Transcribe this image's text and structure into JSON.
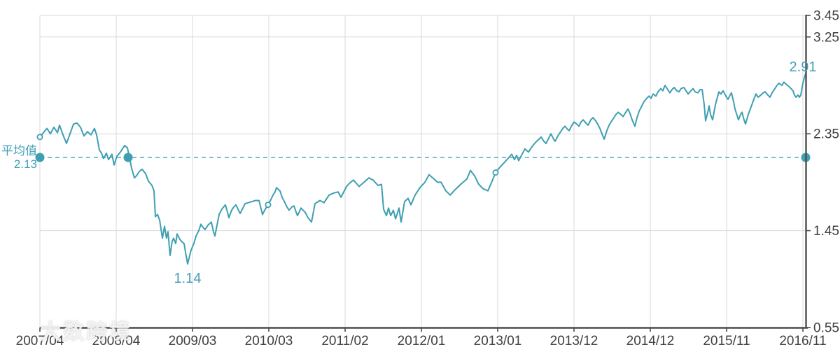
{
  "watermark": {
    "text": "大数跨境"
  },
  "chart_data": {
    "type": "line",
    "title": "",
    "legend": [],
    "grid": true,
    "x_axis": {
      "position": "bottom",
      "tick_labels": [
        "2007/04",
        "2008/04",
        "2009/03",
        "2010/03",
        "2011/02",
        "2012/01",
        "2013/01",
        "2013/12",
        "2014/12",
        "2015/11",
        "2016/11"
      ]
    },
    "y_axis": {
      "position": "right",
      "range": [
        0.55,
        3.45
      ],
      "tick_values": [
        3.45,
        3.25,
        2.35,
        1.45,
        0.55
      ],
      "tick_labels": [
        "3.45",
        "3.25",
        "2.35",
        "1.45",
        "0.55"
      ],
      "grid_values": [
        3.45,
        3.25,
        2.35,
        1.45
      ]
    },
    "average": {
      "label": "平均值",
      "value": 2.13,
      "value_label": "2.13",
      "dot_ts": [
        0,
        0.1152,
        1
      ]
    },
    "annotations": {
      "min_label": "1.14",
      "min_value": 1.14,
      "end_label": "2.91",
      "end_value": 2.91
    },
    "open_markers": [
      [
        0,
        2.32
      ],
      [
        0.298,
        1.69
      ],
      [
        0.5951,
        1.99
      ]
    ],
    "colors": {
      "line": "#3f9fb2",
      "annotation_text": "#429fb5",
      "average_line": "#52a8bc",
      "grid": "#d8d8d8",
      "axis": "#4d4d4d",
      "tick_text": "#404040"
    },
    "points": [
      [
        0,
        2.32
      ],
      [
        0.0046,
        2.36
      ],
      [
        0.0091,
        2.4
      ],
      [
        0.0137,
        2.35
      ],
      [
        0.0183,
        2.41
      ],
      [
        0.0229,
        2.36
      ],
      [
        0.0256,
        2.43
      ],
      [
        0.0302,
        2.34
      ],
      [
        0.0347,
        2.26
      ],
      [
        0.0393,
        2.35
      ],
      [
        0.0439,
        2.44
      ],
      [
        0.0484,
        2.45
      ],
      [
        0.053,
        2.41
      ],
      [
        0.0576,
        2.33
      ],
      [
        0.0622,
        2.37
      ],
      [
        0.0667,
        2.34
      ],
      [
        0.0713,
        2.4
      ],
      [
        0.074,
        2.34
      ],
      [
        0.0777,
        2.2
      ],
      [
        0.0804,
        2.17
      ],
      [
        0.0832,
        2.12
      ],
      [
        0.0868,
        2.17
      ],
      [
        0.0896,
        2.11
      ],
      [
        0.0941,
        2.16
      ],
      [
        0.0969,
        2.06
      ],
      [
        0.1005,
        2.14
      ],
      [
        0.1051,
        2.18
      ],
      [
        0.1079,
        2.21
      ],
      [
        0.1106,
        2.24
      ],
      [
        0.1143,
        2.22
      ],
      [
        0.117,
        2.13
      ],
      [
        0.1197,
        2.03
      ],
      [
        0.1234,
        1.94
      ],
      [
        0.1261,
        1.96
      ],
      [
        0.1298,
        2.0
      ],
      [
        0.1335,
        2.02
      ],
      [
        0.138,
        1.98
      ],
      [
        0.1417,
        1.91
      ],
      [
        0.1463,
        1.87
      ],
      [
        0.149,
        1.82
      ],
      [
        0.1508,
        1.58
      ],
      [
        0.1536,
        1.6
      ],
      [
        0.1563,
        1.55
      ],
      [
        0.16,
        1.38
      ],
      [
        0.1627,
        1.49
      ],
      [
        0.1654,
        1.38
      ],
      [
        0.1673,
        1.44
      ],
      [
        0.17,
        1.22
      ],
      [
        0.1727,
        1.35
      ],
      [
        0.1746,
        1.38
      ],
      [
        0.1773,
        1.33
      ],
      [
        0.1792,
        1.42
      ],
      [
        0.1819,
        1.38
      ],
      [
        0.1837,
        1.36
      ],
      [
        0.1865,
        1.34
      ],
      [
        0.1883,
        1.33
      ],
      [
        0.1901,
        1.25
      ],
      [
        0.1929,
        1.14
      ],
      [
        0.1956,
        1.22
      ],
      [
        0.1974,
        1.27
      ],
      [
        0.2011,
        1.33
      ],
      [
        0.2038,
        1.4
      ],
      [
        0.2075,
        1.45
      ],
      [
        0.2102,
        1.51
      ],
      [
        0.213,
        1.48
      ],
      [
        0.2157,
        1.46
      ],
      [
        0.2194,
        1.5
      ],
      [
        0.2239,
        1.53
      ],
      [
        0.2267,
        1.44
      ],
      [
        0.2285,
        1.4
      ],
      [
        0.2313,
        1.5
      ],
      [
        0.234,
        1.6
      ],
      [
        0.2377,
        1.65
      ],
      [
        0.2422,
        1.69
      ],
      [
        0.245,
        1.62
      ],
      [
        0.2468,
        1.57
      ],
      [
        0.2504,
        1.64
      ],
      [
        0.2532,
        1.67
      ],
      [
        0.2559,
        1.69
      ],
      [
        0.2587,
        1.65
      ],
      [
        0.2614,
        1.61
      ],
      [
        0.2651,
        1.66
      ],
      [
        0.2678,
        1.7
      ],
      [
        0.2724,
        1.71
      ],
      [
        0.277,
        1.72
      ],
      [
        0.2815,
        1.73
      ],
      [
        0.2861,
        1.73
      ],
      [
        0.2907,
        1.6
      ],
      [
        0.2943,
        1.65
      ],
      [
        0.298,
        1.69
      ],
      [
        0.3017,
        1.74
      ],
      [
        0.3044,
        1.78
      ],
      [
        0.3071,
        1.81
      ],
      [
        0.309,
        1.85
      ],
      [
        0.3117,
        1.83
      ],
      [
        0.3135,
        1.82
      ],
      [
        0.3163,
        1.76
      ],
      [
        0.3199,
        1.71
      ],
      [
        0.3227,
        1.67
      ],
      [
        0.3254,
        1.64
      ],
      [
        0.3291,
        1.67
      ],
      [
        0.3318,
        1.68
      ],
      [
        0.3346,
        1.62
      ],
      [
        0.3364,
        1.59
      ],
      [
        0.3391,
        1.63
      ],
      [
        0.3409,
        1.66
      ],
      [
        0.3464,
        1.62
      ],
      [
        0.3501,
        1.57
      ],
      [
        0.3547,
        1.53
      ],
      [
        0.3592,
        1.7
      ],
      [
        0.3656,
        1.73
      ],
      [
        0.3711,
        1.71
      ],
      [
        0.3775,
        1.78
      ],
      [
        0.3839,
        1.8
      ],
      [
        0.3894,
        1.81
      ],
      [
        0.3931,
        1.76
      ],
      [
        0.4004,
        1.86
      ],
      [
        0.4095,
        1.92
      ],
      [
        0.4168,
        1.86
      ],
      [
        0.4232,
        1.9
      ],
      [
        0.4296,
        1.94
      ],
      [
        0.4351,
        1.92
      ],
      [
        0.4415,
        1.87
      ],
      [
        0.4461,
        1.88
      ],
      [
        0.4488,
        1.65
      ],
      [
        0.4525,
        1.59
      ],
      [
        0.4552,
        1.66
      ],
      [
        0.458,
        1.59
      ],
      [
        0.4616,
        1.64
      ],
      [
        0.4644,
        1.56
      ],
      [
        0.4689,
        1.66
      ],
      [
        0.4717,
        1.53
      ],
      [
        0.4762,
        1.72
      ],
      [
        0.4808,
        1.75
      ],
      [
        0.4845,
        1.69
      ],
      [
        0.4899,
        1.78
      ],
      [
        0.4963,
        1.85
      ],
      [
        0.5027,
        1.9
      ],
      [
        0.5082,
        1.97
      ],
      [
        0.5146,
        1.93
      ],
      [
        0.5192,
        1.9
      ],
      [
        0.5238,
        1.9
      ],
      [
        0.5302,
        1.82
      ],
      [
        0.5357,
        1.78
      ],
      [
        0.5421,
        1.83
      ],
      [
        0.5494,
        1.88
      ],
      [
        0.5576,
        1.93
      ],
      [
        0.5622,
        2.01
      ],
      [
        0.5676,
        1.96
      ],
      [
        0.5731,
        1.88
      ],
      [
        0.5786,
        1.84
      ],
      [
        0.585,
        1.82
      ],
      [
        0.5905,
        1.91
      ],
      [
        0.5951,
        1.99
      ],
      [
        0.5996,
        2.03
      ],
      [
        0.606,
        2.08
      ],
      [
        0.6124,
        2.13
      ],
      [
        0.6161,
        2.16
      ],
      [
        0.6197,
        2.11
      ],
      [
        0.6225,
        2.15
      ],
      [
        0.6252,
        2.1
      ],
      [
        0.6289,
        2.15
      ],
      [
        0.6334,
        2.21
      ],
      [
        0.638,
        2.18
      ],
      [
        0.6426,
        2.23
      ],
      [
        0.6472,
        2.27
      ],
      [
        0.6517,
        2.3
      ],
      [
        0.6545,
        2.32
      ],
      [
        0.6581,
        2.28
      ],
      [
        0.6609,
        2.26
      ],
      [
        0.6645,
        2.31
      ],
      [
        0.6673,
        2.35
      ],
      [
        0.6709,
        2.3
      ],
      [
        0.6728,
        2.28
      ],
      [
        0.6764,
        2.33
      ],
      [
        0.6792,
        2.36
      ],
      [
        0.6828,
        2.4
      ],
      [
        0.6856,
        2.42
      ],
      [
        0.6892,
        2.39
      ],
      [
        0.6911,
        2.38
      ],
      [
        0.6947,
        2.43
      ],
      [
        0.6975,
        2.46
      ],
      [
        0.7011,
        2.44
      ],
      [
        0.7039,
        2.42
      ],
      [
        0.7066,
        2.46
      ],
      [
        0.7094,
        2.48
      ],
      [
        0.713,
        2.45
      ],
      [
        0.7158,
        2.43
      ],
      [
        0.7194,
        2.48
      ],
      [
        0.7222,
        2.5
      ],
      [
        0.7258,
        2.47
      ],
      [
        0.7276,
        2.45
      ],
      [
        0.7313,
        2.4
      ],
      [
        0.734,
        2.35
      ],
      [
        0.7368,
        2.3
      ],
      [
        0.7404,
        2.38
      ],
      [
        0.7432,
        2.43
      ],
      [
        0.7468,
        2.47
      ],
      [
        0.7496,
        2.5
      ],
      [
        0.7523,
        2.53
      ],
      [
        0.7551,
        2.55
      ],
      [
        0.7587,
        2.53
      ],
      [
        0.7615,
        2.51
      ],
      [
        0.7651,
        2.55
      ],
      [
        0.7679,
        2.58
      ],
      [
        0.7706,
        2.54
      ],
      [
        0.7733,
        2.48
      ],
      [
        0.777,
        2.42
      ],
      [
        0.7797,
        2.5
      ],
      [
        0.7825,
        2.56
      ],
      [
        0.7861,
        2.61
      ],
      [
        0.7889,
        2.65
      ],
      [
        0.7925,
        2.68
      ],
      [
        0.7953,
        2.7
      ],
      [
        0.798,
        2.68
      ],
      [
        0.8007,
        2.72
      ],
      [
        0.8044,
        2.7
      ],
      [
        0.8071,
        2.74
      ],
      [
        0.8108,
        2.77
      ],
      [
        0.8135,
        2.75
      ],
      [
        0.8163,
        2.8
      ],
      [
        0.819,
        2.77
      ],
      [
        0.8227,
        2.73
      ],
      [
        0.8254,
        2.76
      ],
      [
        0.8282,
        2.78
      ],
      [
        0.8318,
        2.75
      ],
      [
        0.8346,
        2.74
      ],
      [
        0.8373,
        2.77
      ],
      [
        0.841,
        2.78
      ],
      [
        0.8437,
        2.75
      ],
      [
        0.8465,
        2.72
      ],
      [
        0.8501,
        2.75
      ],
      [
        0.8529,
        2.77
      ],
      [
        0.8556,
        2.74
      ],
      [
        0.8593,
        2.73
      ],
      [
        0.862,
        2.76
      ],
      [
        0.8648,
        2.76
      ],
      [
        0.8675,
        2.62
      ],
      [
        0.8693,
        2.47
      ],
      [
        0.8721,
        2.55
      ],
      [
        0.8739,
        2.61
      ],
      [
        0.8757,
        2.53
      ],
      [
        0.8784,
        2.48
      ],
      [
        0.8821,
        2.62
      ],
      [
        0.8867,
        2.74
      ],
      [
        0.8894,
        2.72
      ],
      [
        0.8921,
        2.75
      ],
      [
        0.8958,
        2.7
      ],
      [
        0.8985,
        2.67
      ],
      [
        0.9013,
        2.71
      ],
      [
        0.9031,
        2.73
      ],
      [
        0.9058,
        2.65
      ],
      [
        0.9077,
        2.58
      ],
      [
        0.9104,
        2.52
      ],
      [
        0.9122,
        2.48
      ],
      [
        0.915,
        2.53
      ],
      [
        0.9168,
        2.55
      ],
      [
        0.9195,
        2.48
      ],
      [
        0.9214,
        2.44
      ],
      [
        0.925,
        2.53
      ],
      [
        0.9287,
        2.6
      ],
      [
        0.9323,
        2.67
      ],
      [
        0.9351,
        2.72
      ],
      [
        0.9378,
        2.69
      ],
      [
        0.9415,
        2.71
      ],
      [
        0.9442,
        2.73
      ],
      [
        0.947,
        2.74
      ],
      [
        0.9506,
        2.71
      ],
      [
        0.9534,
        2.69
      ],
      [
        0.9561,
        2.73
      ],
      [
        0.9598,
        2.77
      ],
      [
        0.9625,
        2.8
      ],
      [
        0.9652,
        2.82
      ],
      [
        0.9689,
        2.8
      ],
      [
        0.9716,
        2.83
      ],
      [
        0.9744,
        2.81
      ],
      [
        0.978,
        2.79
      ],
      [
        0.9808,
        2.77
      ],
      [
        0.9835,
        2.75
      ],
      [
        0.9854,
        2.71
      ],
      [
        0.9872,
        2.69
      ],
      [
        0.9899,
        2.71
      ],
      [
        0.9918,
        2.69
      ],
      [
        0.9936,
        2.71
      ],
      [
        0.9963,
        2.82
      ],
      [
        0.9982,
        2.87
      ],
      [
        1,
        2.91
      ]
    ]
  }
}
